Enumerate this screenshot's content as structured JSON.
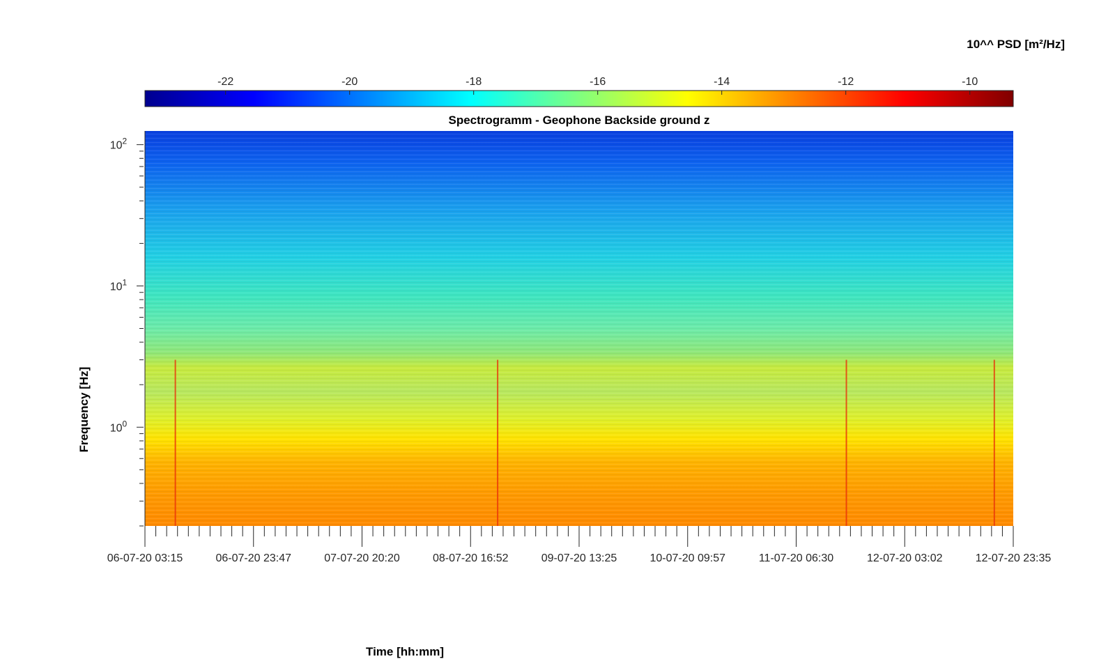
{
  "colorbar": {
    "unit_label": "10^^ PSD [m²/Hz]",
    "ticks": [
      "-22",
      "-20",
      "-18",
      "-16",
      "-14",
      "-12",
      "-10"
    ],
    "tick_values": [
      -22,
      -20,
      -18,
      -16,
      -14,
      -12,
      -10
    ],
    "range": [
      -23.3,
      -9.3
    ],
    "colormap": "jet"
  },
  "chart_data": {
    "type": "heatmap",
    "title": "Spectrogramm - Geophone Backside ground z",
    "xlabel": "Time [hh:mm]",
    "ylabel": "Frequency [Hz]",
    "y_scale": "log",
    "ylim": [
      0.2,
      125
    ],
    "y_ticks": [
      1,
      10,
      100
    ],
    "x_tick_labels": [
      "06-07-20 03:15",
      "06-07-20 23:47",
      "07-07-20 20:20",
      "08-07-20 16:52",
      "09-07-20 13:25",
      "10-07-20 09:57",
      "11-07-20 06:30",
      "12-07-20 03:02",
      "12-07-20 23:35"
    ],
    "color_scale_label": "10^^ PSD [m²/Hz]",
    "clim": [
      -23.3,
      -9.3
    ],
    "bands": [
      {
        "freq_range": [
          60,
          125
        ],
        "log10_psd": -20.5
      },
      {
        "freq_range": [
          15,
          60
        ],
        "log10_psd": -19.0
      },
      {
        "freq_range": [
          5,
          15
        ],
        "log10_psd": -17.5
      },
      {
        "freq_range": [
          2,
          5
        ],
        "log10_psd": -15.5
      },
      {
        "freq_range": [
          0.8,
          2
        ],
        "log10_psd": -15.0
      },
      {
        "freq_range": [
          0.2,
          0.8
        ],
        "log10_psd": -13.5
      }
    ],
    "transients": [
      "06-07-20 09:00",
      "08-07-20 22:00",
      "11-07-20 16:00",
      "12-07-20 20:00"
    ]
  }
}
